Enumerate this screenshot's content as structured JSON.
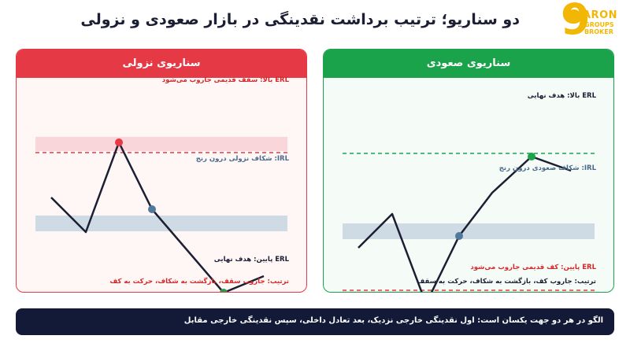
{
  "title": "دو سناریو؛ ترتیب برداشت نقدینگی در بازار صعودی و نزولی",
  "logo": {
    "line1": "ARON",
    "line2a": "GROUPS",
    "line2b": "BROKER",
    "mark": "9",
    "icon": "crown-icon"
  },
  "colors": {
    "bear": "#e63946",
    "bull": "#1aa34a",
    "navy": "#131a38",
    "range": "#cfdbe4",
    "zone": "#f8d6da"
  },
  "bear": {
    "header": "سناریوی نزولی",
    "erl_high": "ERL بالا: سقف قدیمی جاروب می‌شود",
    "irl": "IRL: شکاف نزولی درون رنج",
    "erl_low": "ERL پایین: هدف نهایی",
    "sequence": "ترتیب: جاروب سقف، بازگشت به شکاف، حرکت به کف"
  },
  "bull": {
    "header": "سناریوی صعودی",
    "erl_high": "ERL بالا: هدف نهایی",
    "irl": "IRL: شکاف صعودی درون رنج",
    "erl_low": "ERL پایین: کف قدیمی جاروب می‌شود",
    "sequence": "ترتیب: جاروب کف، بازگشت به شکاف، حرکت به سقف"
  },
  "banner": "الگو در هر دو جهت یکسان است: اول نقدینگی خارجی نزدیک، بعد تعادل داخلی، سپس نقدینگی خارجی مقابل"
}
